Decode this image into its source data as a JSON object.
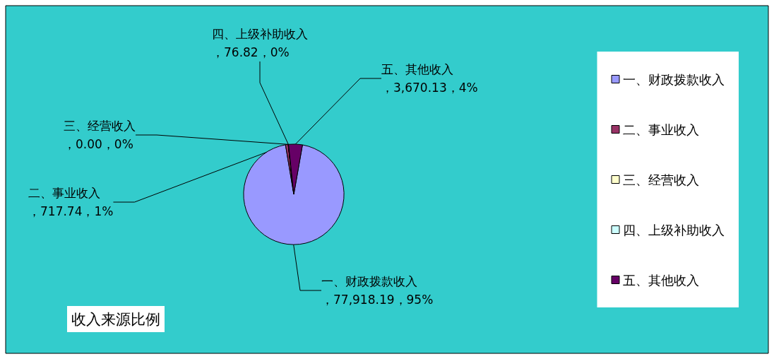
{
  "chart_data": {
    "type": "pie",
    "title": "收入来源比例",
    "categories": [
      "一、财政拨款收入",
      "二、事业收入",
      "三、经营收入",
      "四、上级补助收入",
      "五、其他收入"
    ],
    "values": [
      77918.19,
      717.74,
      0.0,
      76.82,
      3670.13
    ],
    "value_labels": [
      "，77,918.19，95%",
      "，717.74，1%",
      "，0.00，0%",
      "，76.82，0%",
      "，3,670.13，4%"
    ],
    "colors": [
      "#9999ff",
      "#993366",
      "#ffffcc",
      "#ccffff",
      "#660066"
    ],
    "legend": "right"
  }
}
